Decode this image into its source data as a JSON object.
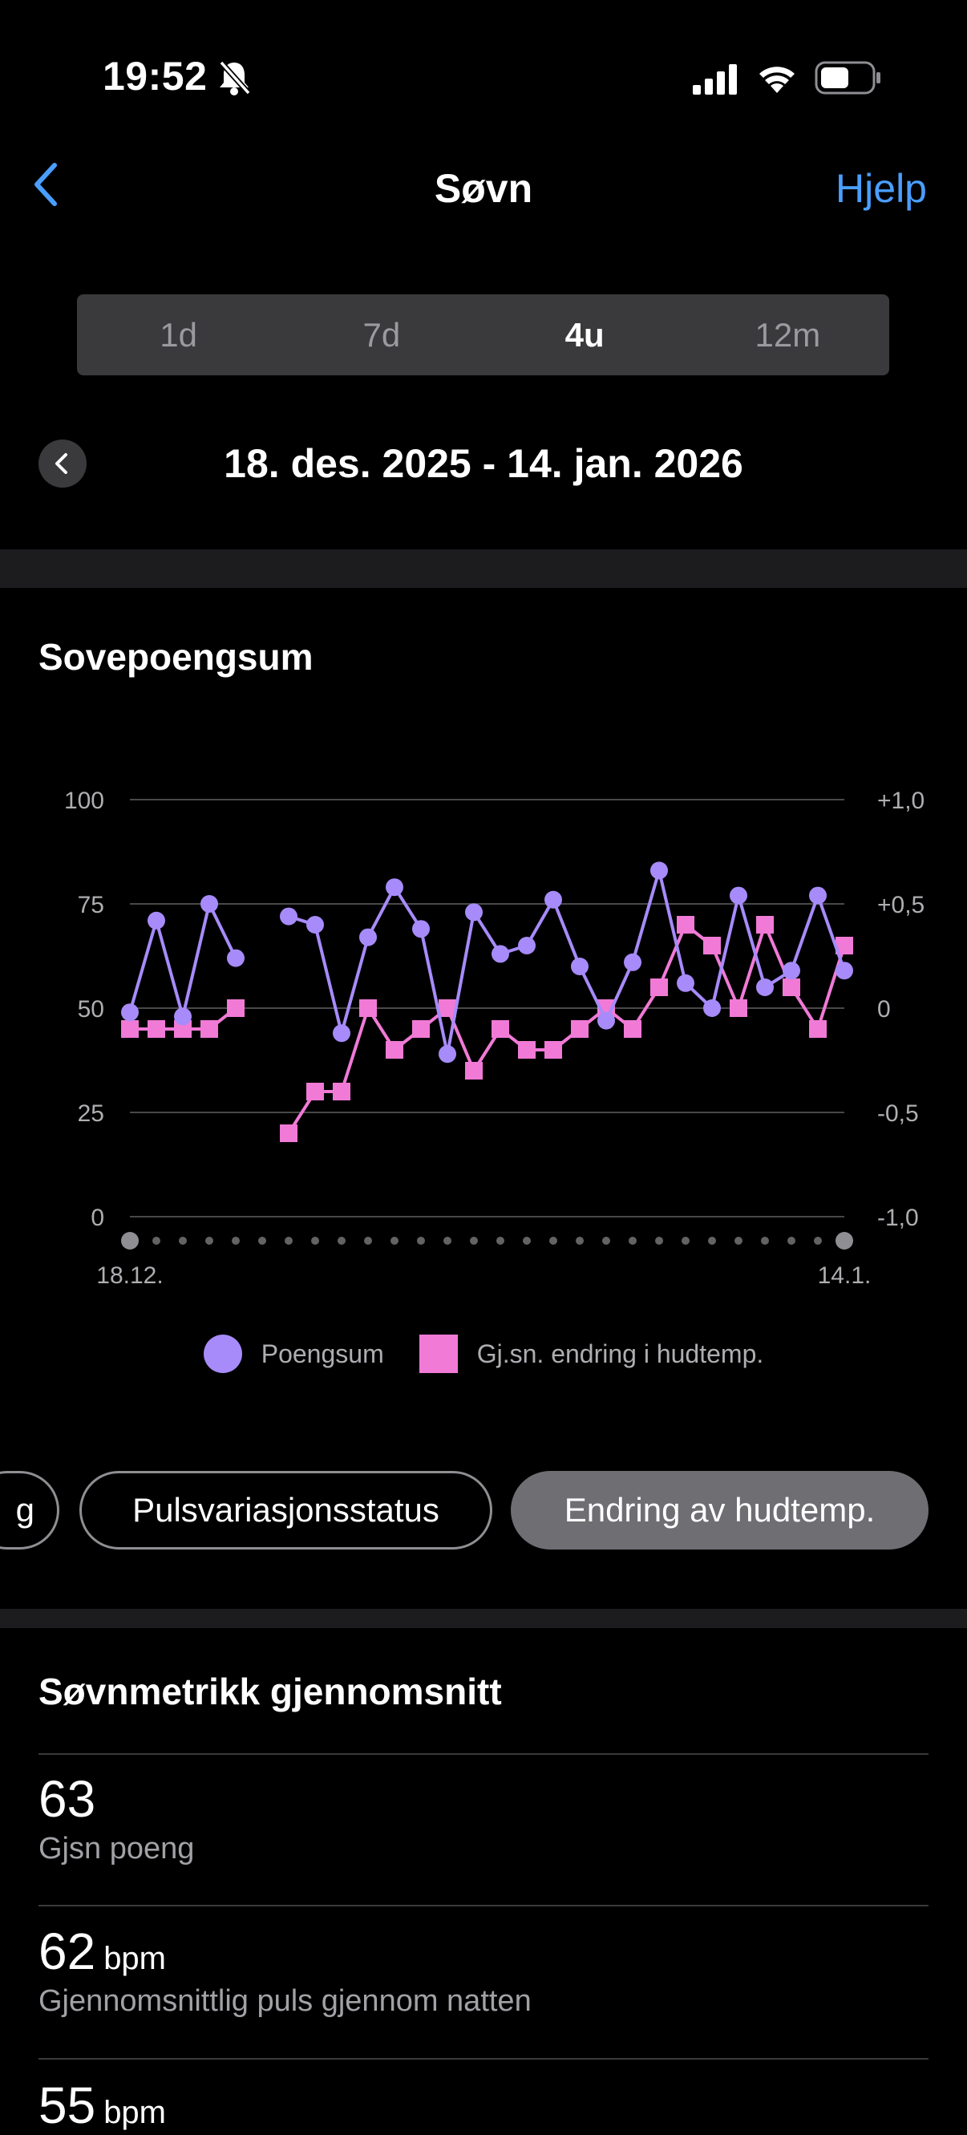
{
  "status": {
    "time": "19:52",
    "bell_icon": "bell-slash-icon",
    "signal_icon": "signal-icon",
    "wifi_icon": "wifi-icon",
    "battery_icon": "battery-icon"
  },
  "nav": {
    "back_icon": "chevron-left-icon",
    "title": "Søvn",
    "help": "Hjelp"
  },
  "tabs": [
    {
      "label": "1d",
      "active": false
    },
    {
      "label": "7d",
      "active": false
    },
    {
      "label": "4u",
      "active": true
    },
    {
      "label": "12m",
      "active": false
    }
  ],
  "date_range": "18. des. 2025 - 14. jan. 2026",
  "section_title": "Sovepoengsum",
  "chart_data": {
    "type": "line",
    "title": "Sovepoengsum",
    "x_tick_labels": [
      "18.12.",
      "14.1."
    ],
    "y_left_ticks": [
      "100",
      "75",
      "50",
      "25",
      "0"
    ],
    "y_right_ticks": [
      "+1,0",
      "+0,5",
      "0",
      "-0,5",
      "-1,0"
    ],
    "ylim_left": [
      0,
      100
    ],
    "ylim_right": [
      -1.0,
      1.0
    ],
    "grid": true,
    "legend_position": "bottom",
    "colors": {
      "score": "#a78bfa",
      "temp": "#f07ad6"
    },
    "series": [
      {
        "name": "Poengsum",
        "axis": "left",
        "marker": "circle",
        "values": [
          49,
          71,
          48,
          75,
          62,
          null,
          72,
          70,
          44,
          67,
          79,
          69,
          39,
          73,
          63,
          65,
          76,
          60,
          47,
          61,
          83,
          56,
          50,
          77,
          55,
          59,
          77,
          59
        ]
      },
      {
        "name": "Gj.sn. endring i hudtemp.",
        "axis": "right",
        "marker": "square",
        "values": [
          -0.1,
          -0.1,
          -0.1,
          -0.1,
          0.0,
          null,
          -0.6,
          -0.4,
          -0.4,
          0.0,
          -0.2,
          -0.1,
          0.0,
          -0.3,
          -0.1,
          -0.2,
          -0.2,
          -0.1,
          0.0,
          -0.1,
          0.1,
          0.4,
          0.3,
          0.0,
          0.4,
          0.1,
          -0.1,
          0.3
        ]
      }
    ]
  },
  "chips": [
    {
      "label": "g"
    },
    {
      "label": "Pulsvariasjonsstatus"
    },
    {
      "label": "Endring av hudtemp."
    }
  ],
  "metrics_title": "Søvnmetrikk gjennomsnitt",
  "metrics": [
    {
      "value": "63",
      "unit": "",
      "label": "Gjsn poeng"
    },
    {
      "value": "62",
      "unit": "bpm",
      "label": "Gjennomsnittlig puls gjennom natten"
    },
    {
      "value": "55",
      "unit": "bpm",
      "label": ""
    }
  ]
}
